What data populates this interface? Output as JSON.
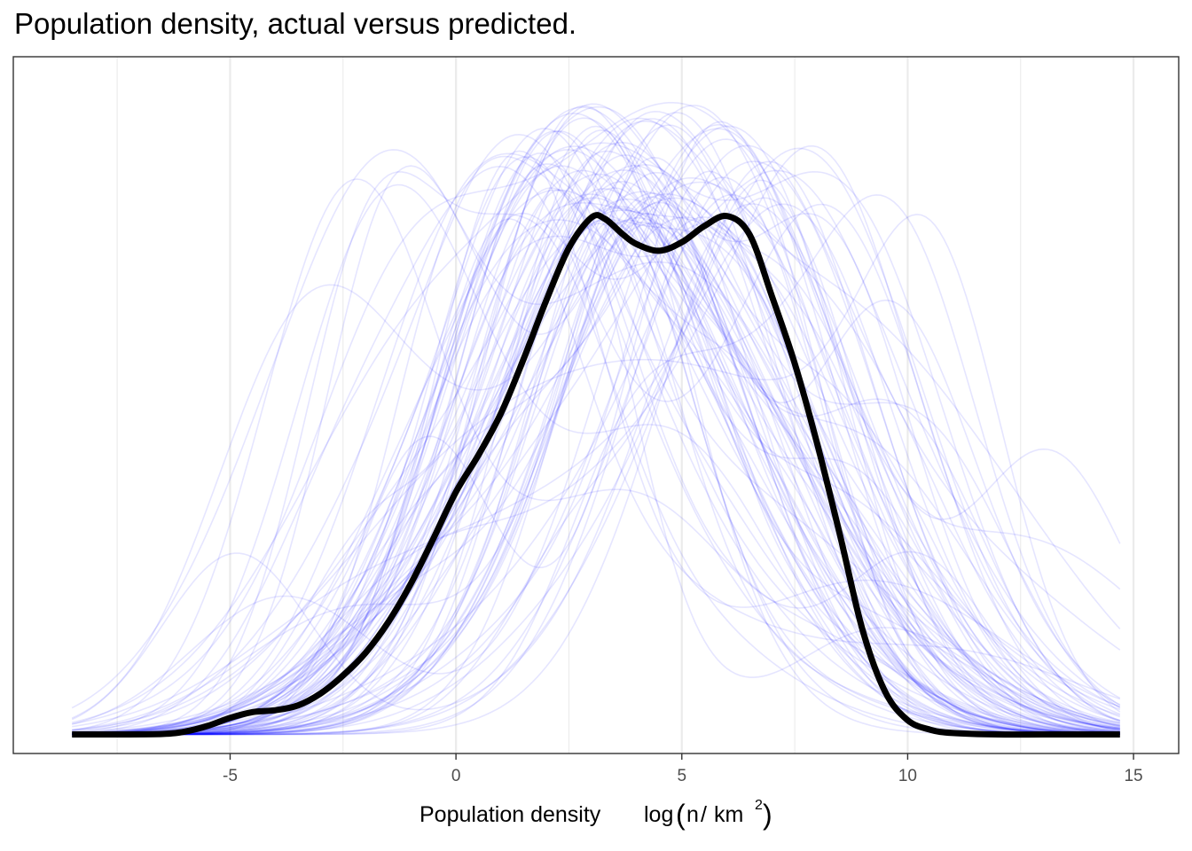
{
  "title": "Population density, actual versus predicted.",
  "chart_data": {
    "type": "line",
    "title": "Population density, actual versus predicted.",
    "xlabel": "Population density",
    "xlabel_math": {
      "func": "log",
      "paren_open": "(",
      "numer": "n",
      "slash": "/",
      "denom": "km",
      "exp": "2",
      "paren_close": ")"
    },
    "ylabel": "",
    "xlim": [
      -9.8,
      16.0
    ],
    "ylim": [
      -0.004,
      0.1425
    ],
    "x_ticks": [
      -5,
      0,
      5,
      10,
      15
    ],
    "x_tick_labels": [
      "-5",
      "0",
      "5",
      "10",
      "15"
    ],
    "y_ticks_shown": false,
    "grid": {
      "vertical_major": true,
      "vertical_minor": true,
      "horizontal": false
    },
    "colors": {
      "observed": "#000000",
      "replicates": "#0000ff",
      "grid": "#ebebeb",
      "border": "#333333",
      "tick_label": "#4d4d4d"
    },
    "replicate_opacity": 0.1,
    "series": [
      {
        "role": "observed",
        "x": [
          -8.5,
          -7.5,
          -6.5,
          -6.0,
          -5.5,
          -5.0,
          -4.5,
          -4.0,
          -3.5,
          -3.0,
          -2.5,
          -2.0,
          -1.5,
          -1.0,
          -0.5,
          0.0,
          0.5,
          1.0,
          1.5,
          2.0,
          2.5,
          3.0,
          3.3,
          3.7,
          4.0,
          4.5,
          5.0,
          5.5,
          6.0,
          6.5,
          7.0,
          7.5,
          8.0,
          8.5,
          9.0,
          9.5,
          10.0,
          10.5,
          11.0,
          12.0,
          13.0,
          14.0,
          14.7
        ],
        "y": [
          0.0,
          0.0,
          0.0001,
          0.0006,
          0.0018,
          0.0035,
          0.0047,
          0.0051,
          0.0061,
          0.0086,
          0.0124,
          0.0172,
          0.0236,
          0.0317,
          0.0412,
          0.051,
          0.0588,
          0.0676,
          0.079,
          0.0913,
          0.1023,
          0.1087,
          0.1084,
          0.1051,
          0.1031,
          0.1017,
          0.1035,
          0.1069,
          0.109,
          0.1051,
          0.092,
          0.078,
          0.061,
          0.042,
          0.022,
          0.009,
          0.003,
          0.001,
          0.0003,
          0.0,
          0.0,
          0.0,
          0.0
        ]
      }
    ],
    "replicates": {
      "count": 100,
      "x_range": [
        -8.5,
        14.7
      ],
      "mean_center": 4.3,
      "sd": 3.5,
      "peak_density_range": [
        0.105,
        0.133
      ]
    }
  }
}
